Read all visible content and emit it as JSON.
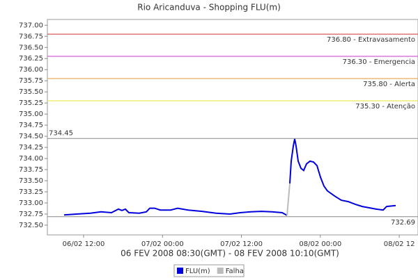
{
  "chart_data": {
    "type": "line",
    "title": "Rio Aricanduva - Shopping FLU(m)",
    "subtitle": "06 FEV 2008 08:30(GMT) - 08 FEV 2008 10:10(GMT)",
    "xlim": [
      6.49,
      62.85
    ],
    "xticks": [
      {
        "value": 12,
        "label": "06/02 12:00"
      },
      {
        "value": 24,
        "label": "07/02 00:00"
      },
      {
        "value": 36,
        "label": "07/02 12:00"
      },
      {
        "value": 48,
        "label": "08/02 00:00"
      },
      {
        "value": 60,
        "label": "08/02 12"
      }
    ],
    "ylim": [
      732.28,
      737.13
    ],
    "yticks": [
      {
        "value": 732.5,
        "label": "732.50"
      },
      732.75,
      {
        "value": 733,
        "label": "733.00"
      },
      733.25,
      {
        "value": 733.5,
        "label": "733.50"
      },
      733.75,
      {
        "value": 734,
        "label": "734.00"
      },
      734.25,
      {
        "value": 734.5,
        "label": "734.50"
      },
      734.75,
      {
        "value": 735,
        "label": "735.00"
      },
      735.25,
      {
        "value": 735.5,
        "label": "735.50"
      },
      735.75,
      {
        "value": 736,
        "label": "736.00"
      },
      736.25,
      {
        "value": 736.5,
        "label": "736.50"
      },
      736.75,
      {
        "value": 737,
        "label": "737.00"
      }
    ],
    "reference_lines": [
      {
        "value": 736.8,
        "label": "736.80 - Extravasamento",
        "color": "#cc3333",
        "label_position": "right"
      },
      {
        "value": 736.3,
        "label": "736.30 - Emergencia",
        "color": "#cc33cc",
        "label_position": "right"
      },
      {
        "value": 735.8,
        "label": "735.80 - Alerta",
        "color": "#e69a2e",
        "label_position": "right"
      },
      {
        "value": 735.3,
        "label": "735.30 - Atenção",
        "color": "#e6e633",
        "label_position": "right"
      },
      {
        "value": 734.45,
        "label": "734.45",
        "color": "#888888",
        "label_position": "left"
      },
      {
        "value": 732.69,
        "label": "732.69",
        "color": "#888888",
        "label_position": "right"
      }
    ],
    "series": [
      {
        "name": "FLU(m)",
        "color": "#0000dd",
        "x": [
          9.03,
          10.94,
          13.06,
          14.65,
          16.24,
          17.3,
          17.83,
          18.36,
          18.89,
          20.47,
          21.53,
          22.06,
          22.81,
          23.65,
          25.24,
          26.3,
          27.89,
          30.01,
          32.13,
          34.25,
          35.83,
          37.42,
          39.01,
          40.6,
          42.19,
          42.93,
          43.1,
          43.36,
          43.57,
          43.89,
          44.1,
          44.31,
          44.63,
          45.05,
          45.47,
          45.9,
          46.43,
          46.96,
          47.49,
          48.02,
          48.55,
          49.08,
          50.14,
          51.19,
          52.25,
          53.31,
          54.37,
          55.43,
          56.49,
          57.55,
          58.08,
          59.46
        ],
        "values": [
          732.73,
          732.75,
          732.77,
          732.8,
          732.78,
          732.86,
          732.83,
          732.86,
          732.78,
          732.77,
          732.8,
          732.88,
          732.88,
          732.84,
          732.84,
          732.88,
          732.84,
          732.81,
          732.77,
          732.75,
          732.78,
          732.8,
          732.81,
          732.8,
          732.78,
          732.72,
          null,
          733.44,
          733.94,
          734.28,
          734.44,
          734.28,
          733.94,
          733.78,
          733.73,
          733.88,
          733.94,
          733.92,
          733.84,
          733.58,
          733.38,
          733.27,
          733.16,
          733.06,
          733.03,
          732.97,
          732.92,
          732.89,
          732.86,
          732.84,
          732.92,
          732.94
        ]
      },
      {
        "name": "Falha",
        "color": "#bbbbbb",
        "x": [
          42.93,
          43.36
        ],
        "values": [
          732.72,
          733.44
        ]
      }
    ]
  }
}
